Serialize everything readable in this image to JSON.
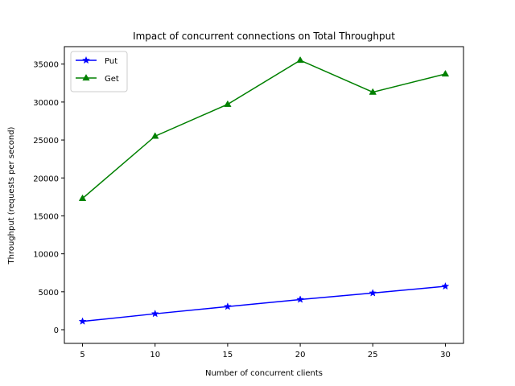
{
  "chart_data": {
    "type": "line",
    "title": "Impact of concurrent connections on Total Throughput",
    "xlabel": "Number of concurrent clients",
    "ylabel": "Throughput (requests per second)",
    "x": [
      5,
      10,
      15,
      20,
      25,
      30
    ],
    "xlim": [
      3.75,
      31.25
    ],
    "ylim": [
      -1800,
      37300
    ],
    "xticks": [
      5,
      10,
      15,
      20,
      25,
      30
    ],
    "yticks": [
      0,
      5000,
      10000,
      15000,
      20000,
      25000,
      30000,
      35000
    ],
    "grid": false,
    "legend_position": "top-left",
    "series": [
      {
        "name": "Put",
        "color": "#0000ff",
        "marker": "star",
        "values": [
          1100,
          2100,
          3050,
          3980,
          4830,
          5720
        ]
      },
      {
        "name": "Get",
        "color": "#008000",
        "marker": "triangle",
        "values": [
          17300,
          25500,
          29700,
          35500,
          31300,
          33700
        ]
      }
    ]
  }
}
